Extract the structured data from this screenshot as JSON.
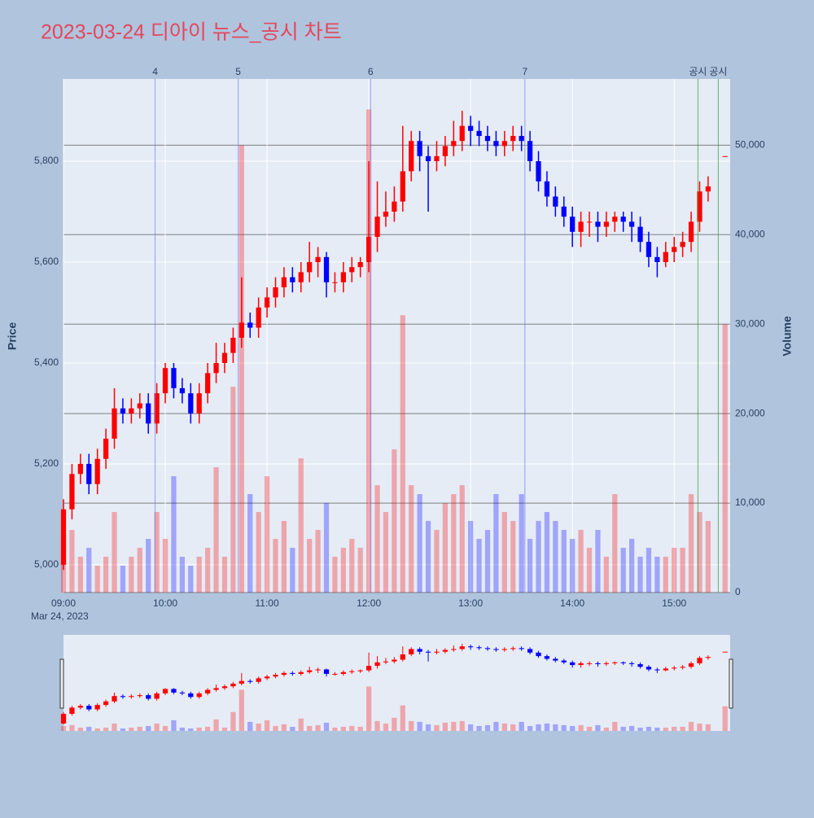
{
  "chart_data": {
    "type": "candlestick",
    "title": "2023-03-24 디아이 뉴스_공시 차트",
    "date_label": "Mar 24, 2023",
    "y_label": "Price",
    "y2_label": "Volume",
    "increasing_color": "#ff0000",
    "decreasing_color": "#0000ff",
    "x": [
      "09:00",
      "09:05",
      "09:10",
      "09:15",
      "09:20",
      "09:25",
      "09:30",
      "09:35",
      "09:40",
      "09:45",
      "09:50",
      "09:55",
      "10:00",
      "10:05",
      "10:10",
      "10:15",
      "10:20",
      "10:25",
      "10:30",
      "10:35",
      "10:40",
      "10:45",
      "10:50",
      "10:55",
      "11:00",
      "11:05",
      "11:10",
      "11:15",
      "11:20",
      "11:25",
      "11:30",
      "11:35",
      "11:40",
      "11:45",
      "11:50",
      "11:55",
      "12:00",
      "12:05",
      "12:10",
      "12:15",
      "12:20",
      "12:25",
      "12:30",
      "12:35",
      "12:40",
      "12:45",
      "12:50",
      "12:55",
      "13:00",
      "13:05",
      "13:10",
      "13:15",
      "13:20",
      "13:25",
      "13:30",
      "13:35",
      "13:40",
      "13:45",
      "13:50",
      "13:55",
      "14:00",
      "14:05",
      "14:10",
      "14:15",
      "14:20",
      "14:25",
      "14:30",
      "14:35",
      "14:40",
      "14:45",
      "14:50",
      "14:55",
      "15:00",
      "15:05",
      "15:10",
      "15:15",
      "15:20",
      "15:30"
    ],
    "open": [
      5000,
      5110,
      5180,
      5200,
      5160,
      5210,
      5250,
      5310,
      5300,
      5310,
      5320,
      5280,
      5340,
      5390,
      5350,
      5340,
      5300,
      5340,
      5380,
      5400,
      5420,
      5450,
      5480,
      5470,
      5510,
      5530,
      5550,
      5570,
      5560,
      5580,
      5600,
      5610,
      5560,
      5560,
      5580,
      5590,
      5600,
      5650,
      5690,
      5700,
      5720,
      5780,
      5840,
      5810,
      5800,
      5810,
      5830,
      5840,
      5870,
      5860,
      5850,
      5840,
      5830,
      5840,
      5850,
      5840,
      5800,
      5760,
      5730,
      5710,
      5690,
      5660,
      5680,
      5680,
      5670,
      5680,
      5690,
      5680,
      5670,
      5640,
      5610,
      5600,
      5620,
      5630,
      5640,
      5680,
      5740,
      5810
    ],
    "high": [
      5130,
      5200,
      5220,
      5220,
      5230,
      5270,
      5350,
      5330,
      5330,
      5340,
      5340,
      5360,
      5400,
      5400,
      5370,
      5360,
      5360,
      5400,
      5440,
      5440,
      5470,
      5570,
      5500,
      5530,
      5550,
      5570,
      5590,
      5590,
      5600,
      5640,
      5630,
      5620,
      5580,
      5600,
      5610,
      5610,
      5800,
      5760,
      5740,
      5750,
      5870,
      5860,
      5860,
      5830,
      5840,
      5850,
      5880,
      5900,
      5890,
      5880,
      5870,
      5860,
      5860,
      5870,
      5870,
      5860,
      5820,
      5780,
      5750,
      5730,
      5710,
      5700,
      5700,
      5700,
      5700,
      5700,
      5700,
      5700,
      5690,
      5660,
      5630,
      5640,
      5650,
      5660,
      5700,
      5760,
      5770,
      5810
    ],
    "low": [
      4990,
      5090,
      5160,
      5140,
      5140,
      5190,
      5230,
      5280,
      5280,
      5290,
      5260,
      5260,
      5320,
      5330,
      5320,
      5280,
      5280,
      5320,
      5360,
      5380,
      5400,
      5430,
      5450,
      5450,
      5490,
      5510,
      5530,
      5540,
      5540,
      5560,
      5570,
      5530,
      5540,
      5540,
      5560,
      5570,
      5580,
      5620,
      5670,
      5680,
      5700,
      5760,
      5780,
      5700,
      5780,
      5790,
      5810,
      5820,
      5830,
      5830,
      5820,
      5810,
      5810,
      5820,
      5820,
      5780,
      5740,
      5710,
      5690,
      5670,
      5630,
      5630,
      5650,
      5640,
      5650,
      5660,
      5660,
      5640,
      5620,
      5590,
      5570,
      5590,
      5600,
      5610,
      5620,
      5660,
      5720,
      5810
    ],
    "close": [
      5110,
      5180,
      5200,
      5160,
      5210,
      5250,
      5310,
      5300,
      5310,
      5320,
      5280,
      5340,
      5390,
      5350,
      5340,
      5300,
      5340,
      5380,
      5400,
      5420,
      5450,
      5480,
      5470,
      5510,
      5530,
      5550,
      5570,
      5560,
      5580,
      5600,
      5610,
      5560,
      5560,
      5580,
      5590,
      5600,
      5650,
      5690,
      5700,
      5720,
      5780,
      5840,
      5810,
      5800,
      5810,
      5830,
      5840,
      5870,
      5860,
      5850,
      5840,
      5830,
      5840,
      5850,
      5840,
      5800,
      5760,
      5730,
      5710,
      5690,
      5660,
      5680,
      5680,
      5670,
      5680,
      5690,
      5680,
      5670,
      5640,
      5610,
      5600,
      5620,
      5630,
      5640,
      5680,
      5740,
      5750,
      5810
    ],
    "volume": [
      6000,
      7000,
      4000,
      5000,
      3000,
      4000,
      9000,
      3000,
      4000,
      5000,
      6000,
      9000,
      6000,
      13000,
      4000,
      3000,
      4000,
      5000,
      14000,
      4000,
      23000,
      50000,
      11000,
      9000,
      13000,
      6000,
      8000,
      5000,
      15000,
      6000,
      7000,
      10000,
      4000,
      5000,
      6000,
      5000,
      54000,
      12000,
      9000,
      16000,
      31000,
      12000,
      11000,
      8000,
      7000,
      10000,
      11000,
      12000,
      8000,
      6000,
      7000,
      11000,
      9000,
      8000,
      11000,
      6000,
      8000,
      9000,
      8000,
      7000,
      6000,
      7000,
      5000,
      7000,
      4000,
      11000,
      5000,
      6000,
      4000,
      5000,
      4000,
      4000,
      5000,
      5000,
      11000,
      9000,
      8000,
      30000
    ],
    "xlim": [
      "09:00",
      "15:33"
    ],
    "xticks": [
      "09:00",
      "10:00",
      "11:00",
      "12:00",
      "13:00",
      "14:00",
      "15:00"
    ],
    "ylim": [
      4945,
      5963
    ],
    "yticks": [
      {
        "value": 5000,
        "label": "5,000"
      },
      {
        "value": 5200,
        "label": "5,200"
      },
      {
        "value": 5400,
        "label": "5,400"
      },
      {
        "value": 5600,
        "label": "5,600"
      },
      {
        "value": 5800,
        "label": "5,800"
      }
    ],
    "y2lim": [
      0,
      57400
    ],
    "y2ticks": [
      0,
      {
        "value": 10000,
        "label": "10,000"
      },
      {
        "value": 20000,
        "label": "20,000"
      },
      {
        "value": 30000,
        "label": "30,000"
      },
      {
        "value": 40000,
        "label": "40,000"
      },
      {
        "value": 50000,
        "label": "50,000"
      }
    ],
    "events": [
      {
        "x": "09:54",
        "label": "4",
        "color": "#6d7cf0"
      },
      {
        "x": "10:43",
        "label": "5",
        "color": "#6d7cf0"
      },
      {
        "x": "12:01",
        "label": "6",
        "color": "#6d7cf0"
      },
      {
        "x": "13:32",
        "label": "7",
        "color": "#6d7cf0"
      },
      {
        "x": "15:14",
        "label": "공시",
        "color": "#2e9a2e"
      },
      {
        "x": "15:26",
        "label": "공시",
        "color": "#2e9a2e"
      }
    ]
  }
}
